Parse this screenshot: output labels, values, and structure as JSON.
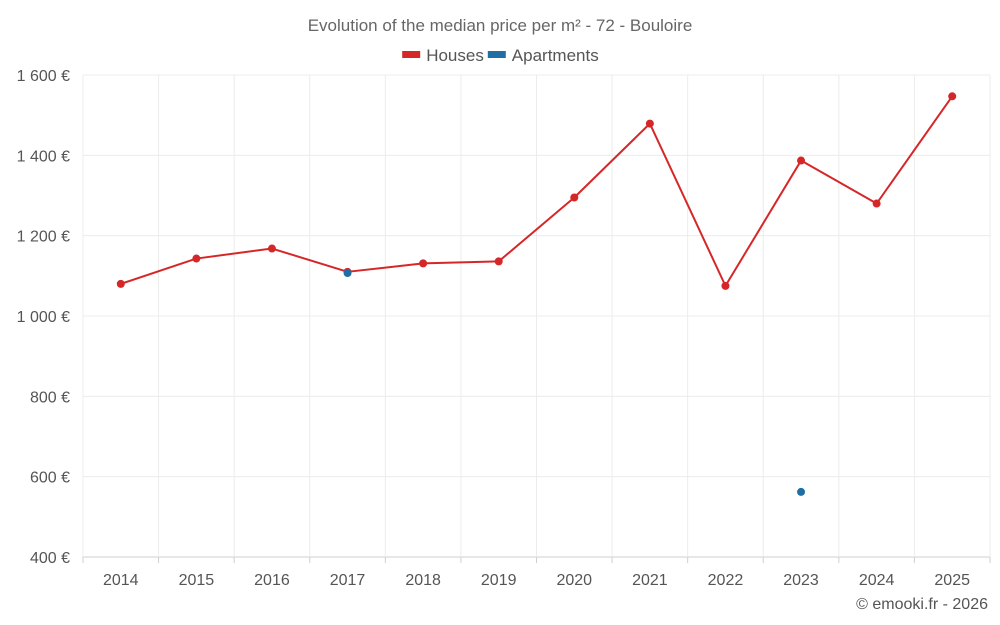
{
  "chart_data": {
    "type": "line",
    "title": "Evolution of the median price per m² - 72 - Bouloire",
    "xlabel": "",
    "ylabel": "",
    "categories": [
      "2014",
      "2015",
      "2016",
      "2017",
      "2018",
      "2019",
      "2020",
      "2021",
      "2022",
      "2023",
      "2024",
      "2025"
    ],
    "ylim": [
      400,
      1600
    ],
    "yticks": [
      400,
      600,
      800,
      1000,
      1200,
      1400,
      1600
    ],
    "ytick_labels": [
      "400 €",
      "600 €",
      "800 €",
      "1 000 €",
      "1 200 €",
      "1 400 €",
      "1 600 €"
    ],
    "grid": true,
    "legend_position": "top-center",
    "series": [
      {
        "name": "Houses",
        "color": "#d62728",
        "values": [
          1080,
          1143,
          1168,
          1110,
          1131,
          1136,
          1295,
          1479,
          1075,
          1387,
          1280,
          1547
        ]
      },
      {
        "name": "Apartments",
        "color": "#1f6fa6",
        "values": [
          null,
          null,
          null,
          1107,
          null,
          null,
          null,
          null,
          null,
          562,
          null,
          null
        ]
      }
    ]
  },
  "credit": "© emooki.fr - 2026"
}
